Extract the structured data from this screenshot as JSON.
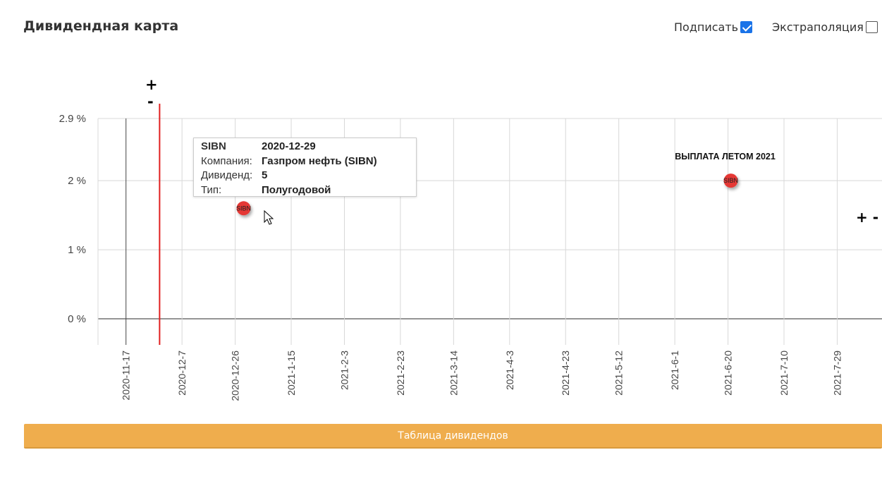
{
  "header": {
    "title": "Дивидендная карта",
    "sign_label": "Подписать",
    "sign_checked": true,
    "extrapolation_label": "Экстраполяция",
    "extrapolation_checked": false
  },
  "zoom": {
    "plus": "+",
    "minus": "-",
    "right_label": "+ -"
  },
  "tooltip": {
    "ticker": "SIBN",
    "date": "2020-12-29",
    "company_key": "Компания:",
    "company_value": "Газпром нефть (SIBN)",
    "dividend_key": "Дивиденд:",
    "dividend_value": "5",
    "type_key": "Тип:",
    "type_value": "Полугодовой"
  },
  "table_button_label": "Таблица дивидендов",
  "chart_data": {
    "type": "scatter",
    "title": "",
    "xlabel": "",
    "ylabel": "",
    "x_ticks": [
      "2020-11-17",
      "2020-12-7",
      "2020-12-26",
      "2021-1-15",
      "2021-2-3",
      "2021-2-23",
      "2021-3-14",
      "2021-4-3",
      "2021-4-23",
      "2021-5-12",
      "2021-6-1",
      "2021-6-20",
      "2021-7-10",
      "2021-7-29"
    ],
    "y_ticks": [
      "2.9 %",
      "2 %",
      "1 %",
      "0 %"
    ],
    "y_tick_values": [
      2.9,
      2,
      1,
      0
    ],
    "ylim": [
      -0.4,
      2.9
    ],
    "xlim": [
      "2020-11-07",
      "2021-08-14"
    ],
    "grid": true,
    "today": "2020-11-29",
    "today_color": "#e02020",
    "points": [
      {
        "label": "SIBN",
        "x": "2020-12-29",
        "y": 1.6,
        "color": "#e53935"
      },
      {
        "label": "SIBN",
        "x": "2021-06-21",
        "y": 2.0,
        "color": "#e53935"
      }
    ],
    "annotations": [
      {
        "text": "ВЫПЛАТА ЛЕТОМ 2021",
        "x": "2021-06-21",
        "y": 2.35
      }
    ]
  }
}
